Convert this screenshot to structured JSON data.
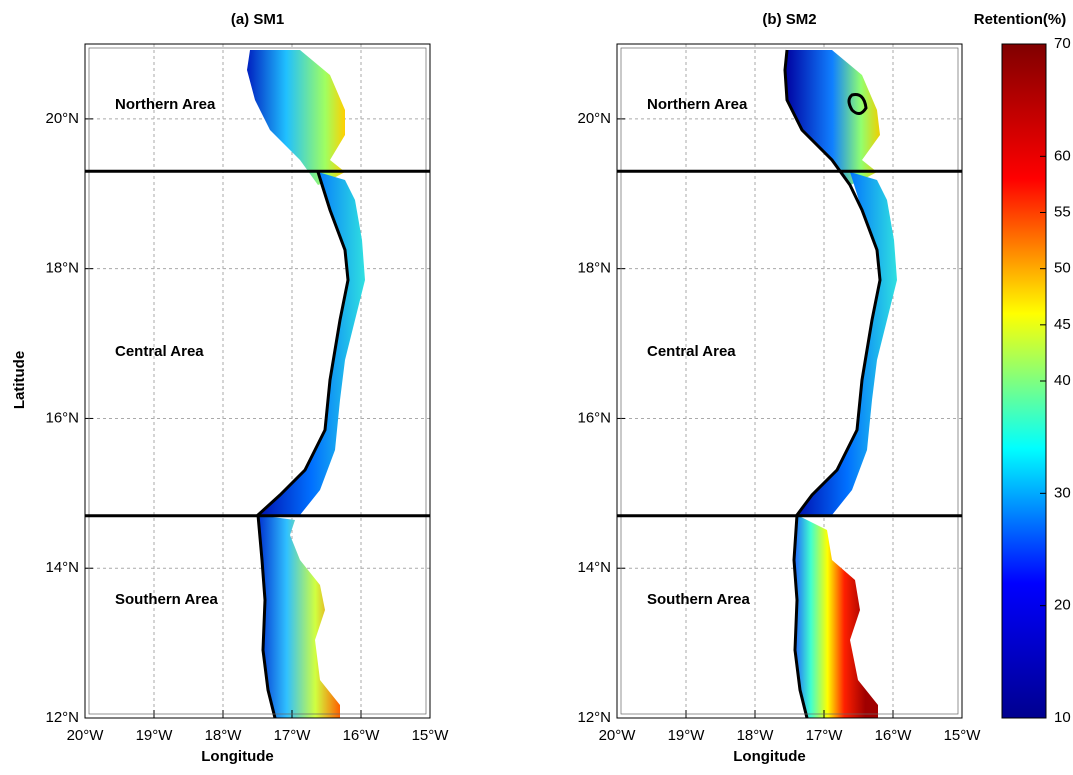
{
  "chart_data": [
    {
      "type": "map",
      "title": "(a) SM1",
      "ylabel": "Latitude",
      "xlabel": "Longitude",
      "xlim": [
        -20,
        -15
      ],
      "ylim": [
        12,
        21
      ],
      "xticks": [
        {
          "value": -20,
          "label": "20°W"
        },
        {
          "value": -19,
          "label": "19°W"
        },
        {
          "value": -18,
          "label": "18°W"
        },
        {
          "value": -17,
          "label": "17°W"
        },
        {
          "value": -16,
          "label": "16°W"
        },
        {
          "value": -15,
          "label": "15°W"
        }
      ],
      "yticks": [
        {
          "value": 12,
          "label": "12°N"
        },
        {
          "value": 14,
          "label": "14°N"
        },
        {
          "value": 16,
          "label": "16°N"
        },
        {
          "value": 18,
          "label": "18°N"
        },
        {
          "value": 20,
          "label": "20°N"
        }
      ],
      "dividers": [
        19.3,
        14.7
      ],
      "region_labels": [
        "Northern Area",
        "Central Area",
        "Southern Area"
      ],
      "grid": true
    },
    {
      "type": "map",
      "title": "(b) SM2",
      "xlabel": "Longitude",
      "xlim": [
        -20,
        -15
      ],
      "ylim": [
        12,
        21
      ],
      "xticks": [
        {
          "value": -20,
          "label": "20°W"
        },
        {
          "value": -19,
          "label": "19°W"
        },
        {
          "value": -18,
          "label": "18°W"
        },
        {
          "value": -17,
          "label": "17°W"
        },
        {
          "value": -16,
          "label": "16°W"
        },
        {
          "value": -15,
          "label": "15°W"
        }
      ],
      "yticks": [
        {
          "value": 12,
          "label": "12°N"
        },
        {
          "value": 14,
          "label": "14°N"
        },
        {
          "value": 16,
          "label": "16°N"
        },
        {
          "value": 18,
          "label": "18°N"
        },
        {
          "value": 20,
          "label": "20°N"
        }
      ],
      "dividers": [
        19.3,
        14.7
      ],
      "region_labels": [
        "Northern Area",
        "Central Area",
        "Southern Area"
      ],
      "grid": true
    }
  ],
  "colorbar": {
    "title": "Retention(%)",
    "lim": [
      10,
      70
    ],
    "ticks": [
      10,
      20,
      30,
      40,
      45,
      50,
      55,
      60,
      70
    ],
    "colors": [
      "#00008f",
      "#0000ff",
      "#00ffff",
      "#ffff00",
      "#ff0000",
      "#800000"
    ]
  }
}
